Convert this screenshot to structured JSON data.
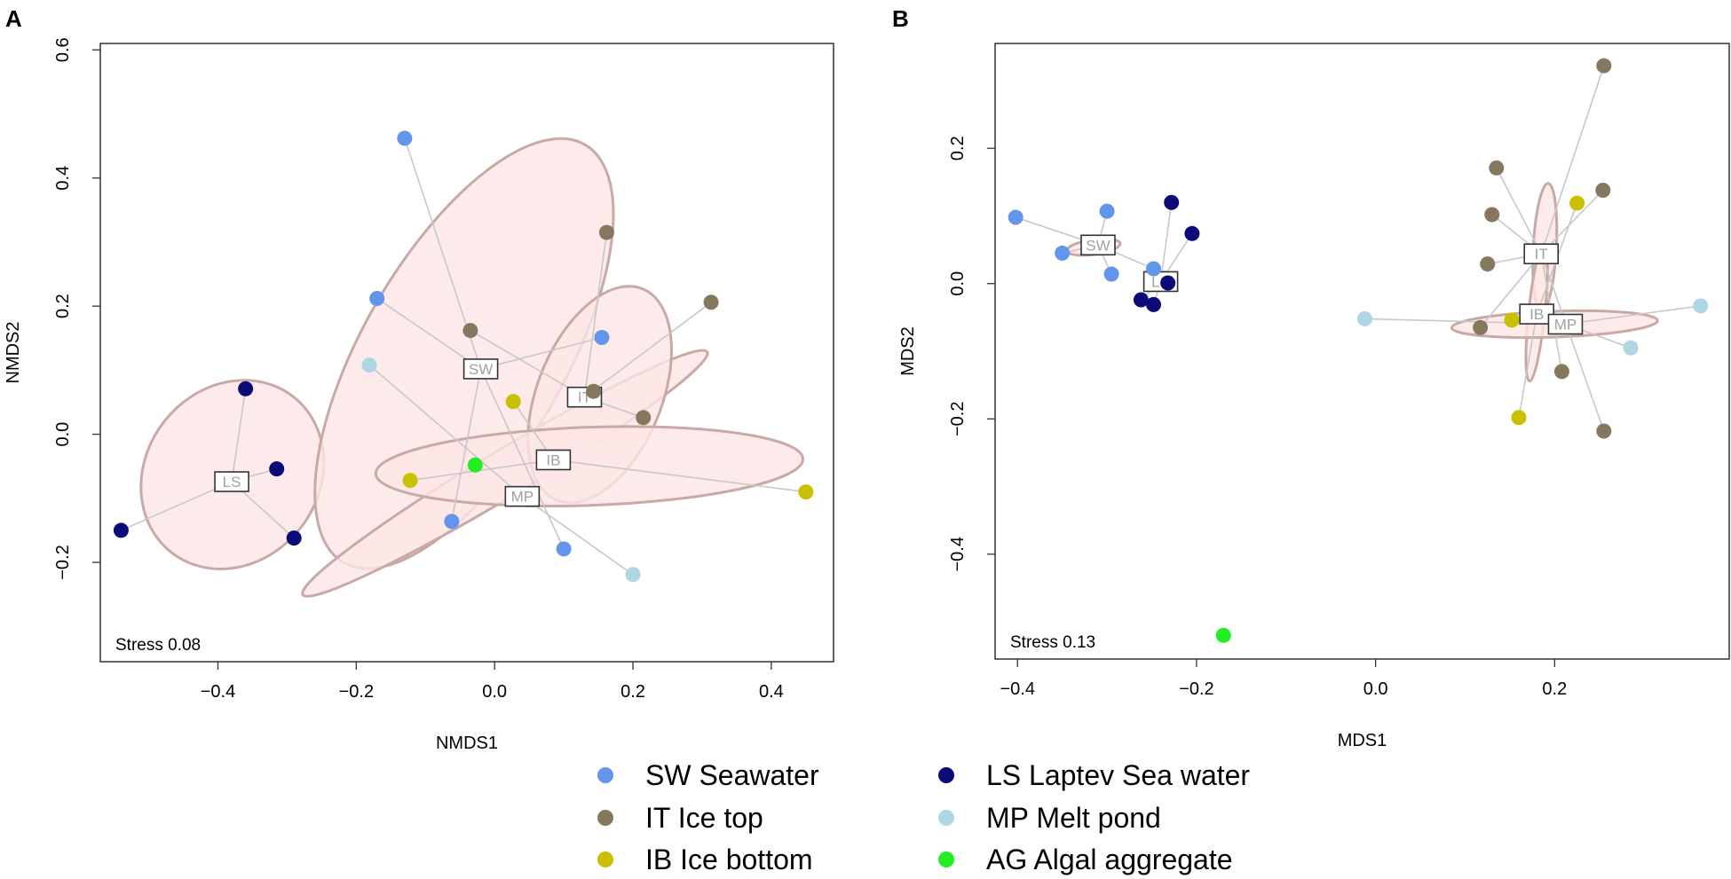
{
  "groups": {
    "SW": {
      "label": "SW Seawater",
      "color": "#6495ed"
    },
    "LS": {
      "label": "LS Laptev Sea water",
      "color": "#0a0a78"
    },
    "IT": {
      "label": "IT Ice top",
      "color": "#86785f"
    },
    "MP": {
      "label": "MP Melt pond",
      "color": "#aed6e3"
    },
    "IB": {
      "label": "IB Ice bottom",
      "color": "#c8c000"
    },
    "AG": {
      "label": "AG Algal aggregate",
      "color": "#22ee22"
    }
  },
  "legend_order": [
    "SW",
    "LS",
    "IT",
    "MP",
    "IB",
    "AG"
  ],
  "ellipse_fill": "#fde6e6",
  "ellipse_stroke": "#c9a9a6",
  "spider_color": "#c8c8c8",
  "chart_data": [
    {
      "panel_label": "A",
      "type": "scatter",
      "xlabel": "NMDS1",
      "ylabel": "NMDS2",
      "xlim": [
        -0.57,
        0.49
      ],
      "ylim": [
        -0.355,
        0.61
      ],
      "xticks": [
        -0.4,
        -0.2,
        0.0,
        0.2,
        0.4
      ],
      "xtick_labels": [
        "−0.4",
        "−0.2",
        "0.0",
        "0.2",
        "0.4"
      ],
      "yticks": [
        -0.2,
        0.0,
        0.2,
        0.4,
        0.6
      ],
      "ytick_labels": [
        "−0.2",
        "0.0",
        "0.2",
        "0.4",
        "0.6"
      ],
      "stress": "Stress 0.08",
      "ellipses": [
        {
          "group": "LS",
          "cx": -0.379,
          "cy": -0.063,
          "rx": 0.143,
          "ry": 0.135,
          "angle": -52
        },
        {
          "group": "SW",
          "cx": -0.044,
          "cy": 0.126,
          "rx": 0.349,
          "ry": 0.158,
          "angle": -60
        },
        {
          "group": "MP",
          "cx": 0.015,
          "cy": -0.061,
          "rx": 0.341,
          "ry": 0.036,
          "angle": -31
        },
        {
          "group": "IT",
          "cx": 0.152,
          "cy": 0.062,
          "rx": 0.165,
          "ry": 0.097,
          "angle": -68
        },
        {
          "group": "IB",
          "cx": 0.137,
          "cy": -0.05,
          "rx": 0.309,
          "ry": 0.061,
          "angle": -2
        }
      ],
      "centroids": [
        {
          "group": "SW",
          "x": -0.02,
          "y": 0.102
        },
        {
          "group": "IT",
          "x": 0.13,
          "y": 0.058
        },
        {
          "group": "LS",
          "x": -0.38,
          "y": -0.074
        },
        {
          "group": "IB",
          "x": 0.085,
          "y": -0.04
        },
        {
          "group": "MP",
          "x": 0.04,
          "y": -0.097
        }
      ],
      "points": [
        {
          "group": "SW",
          "x": -0.13,
          "y": 0.462
        },
        {
          "group": "SW",
          "x": -0.17,
          "y": 0.212
        },
        {
          "group": "SW",
          "x": 0.155,
          "y": 0.151
        },
        {
          "group": "SW",
          "x": -0.062,
          "y": -0.136
        },
        {
          "group": "SW",
          "x": 0.1,
          "y": -0.179
        },
        {
          "group": "IT",
          "x": -0.035,
          "y": 0.162
        },
        {
          "group": "IT",
          "x": 0.162,
          "y": 0.315
        },
        {
          "group": "IT",
          "x": 0.313,
          "y": 0.206
        },
        {
          "group": "IT",
          "x": 0.143,
          "y": 0.067
        },
        {
          "group": "IT",
          "x": 0.215,
          "y": 0.026
        },
        {
          "group": "IB",
          "x": 0.027,
          "y": 0.051
        },
        {
          "group": "IB",
          "x": -0.122,
          "y": -0.072
        },
        {
          "group": "IB",
          "x": 0.45,
          "y": -0.09
        },
        {
          "group": "LS",
          "x": -0.36,
          "y": 0.071
        },
        {
          "group": "LS",
          "x": -0.315,
          "y": -0.054
        },
        {
          "group": "LS",
          "x": -0.54,
          "y": -0.15
        },
        {
          "group": "LS",
          "x": -0.29,
          "y": -0.162
        },
        {
          "group": "MP",
          "x": -0.181,
          "y": 0.108
        },
        {
          "group": "MP",
          "x": 0.2,
          "y": -0.219
        },
        {
          "group": "AG",
          "x": -0.028,
          "y": -0.048
        }
      ]
    },
    {
      "panel_label": "B",
      "type": "scatter",
      "xlabel": "MDS1",
      "ylabel": "MDS2",
      "xlim": [
        -0.425,
        0.395
      ],
      "ylim": [
        -0.555,
        0.355
      ],
      "xticks": [
        -0.4,
        -0.2,
        0.0,
        0.2
      ],
      "xtick_labels": [
        "−0.4",
        "−0.2",
        "0.0",
        "0.2"
      ],
      "yticks": [
        -0.4,
        -0.2,
        0.0,
        0.2
      ],
      "ytick_labels": [
        "−0.4",
        "−0.2",
        "0.0",
        "0.2"
      ],
      "stress": "Stress 0.13",
      "ellipses": [
        {
          "group": "SW",
          "cx": -0.315,
          "cy": 0.054,
          "rx": 0.03,
          "ry": 0.011,
          "angle": -8
        },
        {
          "group": "LS",
          "cx": -0.236,
          "cy": 0.004,
          "rx": 0.013,
          "ry": 0.013,
          "angle": 0
        },
        {
          "group": "IT",
          "cx": 0.189,
          "cy": 0.053,
          "rx": 0.072,
          "ry": 0.017,
          "angle": -87
        },
        {
          "group": "IB",
          "cx": 0.18,
          "cy": -0.043,
          "rx": 0.077,
          "ry": 0.012,
          "angle": -84
        },
        {
          "group": "MP",
          "cx": 0.2,
          "cy": -0.06,
          "rx": 0.115,
          "ry": 0.019,
          "angle": -2
        }
      ],
      "centroids": [
        {
          "group": "SW",
          "x": -0.31,
          "y": 0.057
        },
        {
          "group": "LS",
          "x": -0.24,
          "y": 0.003
        },
        {
          "group": "IT",
          "x": 0.185,
          "y": 0.044
        },
        {
          "group": "IB",
          "x": 0.18,
          "y": -0.045
        },
        {
          "group": "MP",
          "x": 0.212,
          "y": -0.06
        }
      ],
      "points": [
        {
          "group": "SW",
          "x": -0.402,
          "y": 0.098
        },
        {
          "group": "SW",
          "x": -0.35,
          "y": 0.045
        },
        {
          "group": "SW",
          "x": -0.3,
          "y": 0.107
        },
        {
          "group": "SW",
          "x": -0.295,
          "y": 0.014
        },
        {
          "group": "SW",
          "x": -0.248,
          "y": 0.022
        },
        {
          "group": "LS",
          "x": -0.262,
          "y": -0.024
        },
        {
          "group": "LS",
          "x": -0.248,
          "y": -0.031
        },
        {
          "group": "LS",
          "x": -0.232,
          "y": 0.001
        },
        {
          "group": "LS",
          "x": -0.205,
          "y": 0.074
        },
        {
          "group": "LS",
          "x": -0.228,
          "y": 0.12
        },
        {
          "group": "IT",
          "x": 0.255,
          "y": 0.322
        },
        {
          "group": "IT",
          "x": 0.135,
          "y": 0.171
        },
        {
          "group": "IT",
          "x": 0.13,
          "y": 0.102
        },
        {
          "group": "IT",
          "x": 0.125,
          "y": 0.029
        },
        {
          "group": "IT",
          "x": 0.254,
          "y": 0.138
        },
        {
          "group": "IT",
          "x": 0.117,
          "y": -0.065
        },
        {
          "group": "IT",
          "x": 0.208,
          "y": -0.13
        },
        {
          "group": "IT",
          "x": 0.255,
          "y": -0.218
        },
        {
          "group": "IB",
          "x": 0.225,
          "y": 0.119
        },
        {
          "group": "IB",
          "x": 0.152,
          "y": -0.054
        },
        {
          "group": "IB",
          "x": 0.16,
          "y": -0.198
        },
        {
          "group": "MP",
          "x": -0.012,
          "y": -0.052
        },
        {
          "group": "MP",
          "x": 0.363,
          "y": -0.033
        },
        {
          "group": "MP",
          "x": 0.285,
          "y": -0.095
        },
        {
          "group": "AG",
          "x": -0.17,
          "y": -0.52
        }
      ]
    }
  ]
}
